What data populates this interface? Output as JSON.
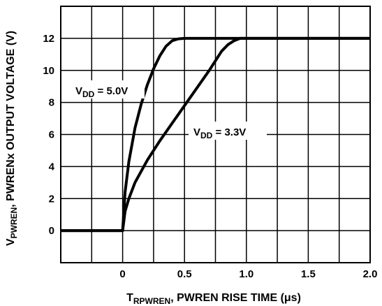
{
  "chart_data": {
    "type": "line",
    "xlim": [
      -0.5,
      2.0
    ],
    "ylim": [
      -2,
      14
    ],
    "x_ticks": [
      "0",
      "0.5",
      "1.0",
      "1.5",
      "2.0"
    ],
    "y_ticks": [
      "0",
      "2",
      "4",
      "6",
      "8",
      "10",
      "12"
    ],
    "grid": true,
    "xlabel": {
      "main": "T",
      "sub": "RPWREN",
      "rest": ", PWREN RISE TIME (μs)"
    },
    "ylabel": {
      "main": "V",
      "sub": "PWREN",
      "rest": ", PWRENx OUTPUT VOLTAGE (V)"
    },
    "series": [
      {
        "name": "VDD = 5.0V",
        "label_main": "V",
        "label_sub": "DD",
        "label_rest": " = 5.0V",
        "x": [
          -0.5,
          0.0,
          0.02,
          0.05,
          0.1,
          0.15,
          0.2,
          0.25,
          0.3,
          0.35,
          0.4,
          0.45,
          0.5,
          0.55,
          0.6,
          2.0
        ],
        "y": [
          0.0,
          0.0,
          2.4,
          4.3,
          6.4,
          7.9,
          9.1,
          10.1,
          10.9,
          11.5,
          11.85,
          11.97,
          12.0,
          12.0,
          12.0,
          12.0
        ]
      },
      {
        "name": "VDD = 3.3V",
        "label_main": "V",
        "label_sub": "DD",
        "label_rest": " = 3.3V",
        "x": [
          -0.5,
          0.0,
          0.02,
          0.05,
          0.1,
          0.2,
          0.3,
          0.4,
          0.5,
          0.6,
          0.7,
          0.8,
          0.85,
          0.9,
          0.95,
          1.0,
          2.0
        ],
        "y": [
          0.0,
          0.0,
          1.2,
          2.0,
          3.0,
          4.4,
          5.6,
          6.7,
          7.8,
          8.9,
          10.0,
          11.2,
          11.6,
          11.85,
          12.0,
          12.0,
          12.0
        ]
      }
    ]
  }
}
